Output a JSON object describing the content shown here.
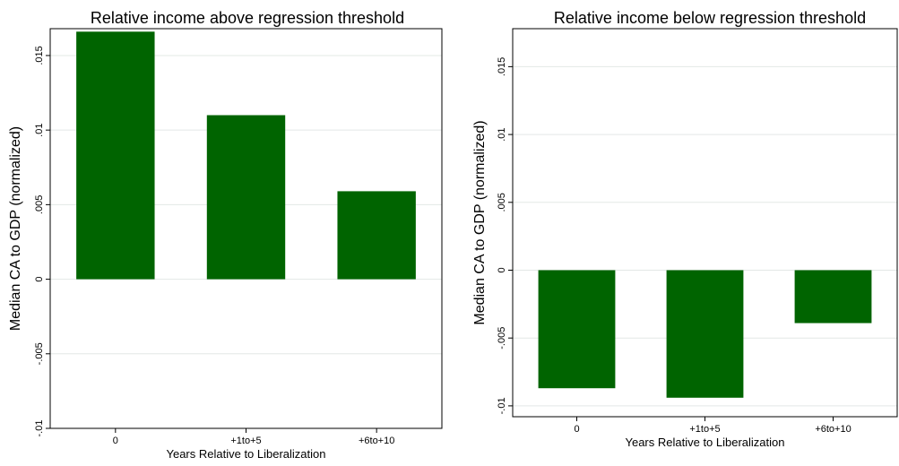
{
  "chart_data": [
    {
      "type": "bar",
      "title": "Relative income above regression threshold",
      "xlabel": "Years Relative to Liberalization",
      "ylabel": "Median CA to GDP (normalized)",
      "categories": [
        "0",
        "+1to+5",
        "+6to+10"
      ],
      "values": [
        0.0166,
        0.011,
        0.0059
      ],
      "ylim": [
        -0.01,
        0.0168
      ],
      "yticks": [
        -0.01,
        -0.005,
        0,
        0.005,
        0.01,
        0.015
      ],
      "ytick_labels": [
        "-.01",
        "-.005",
        "0",
        ".005",
        ".01",
        ".015"
      ],
      "grid": true,
      "bar_color": "#006400"
    },
    {
      "type": "bar",
      "title": "Relative income below regression threshold",
      "xlabel": "Years Relative to Liberalization",
      "ylabel": "Median CA to GDP (normalized)",
      "categories": [
        "0",
        "+1to+5",
        "+6to+10"
      ],
      "values": [
        -0.0087,
        -0.0094,
        -0.0039
      ],
      "ylim": [
        -0.0108,
        0.0178
      ],
      "yticks": [
        -0.01,
        -0.005,
        0,
        0.005,
        0.01,
        0.015
      ],
      "ytick_labels": [
        "-.01",
        "-.005",
        "0",
        ".005",
        ".01",
        ".015"
      ],
      "grid": true,
      "bar_color": "#006400"
    }
  ]
}
